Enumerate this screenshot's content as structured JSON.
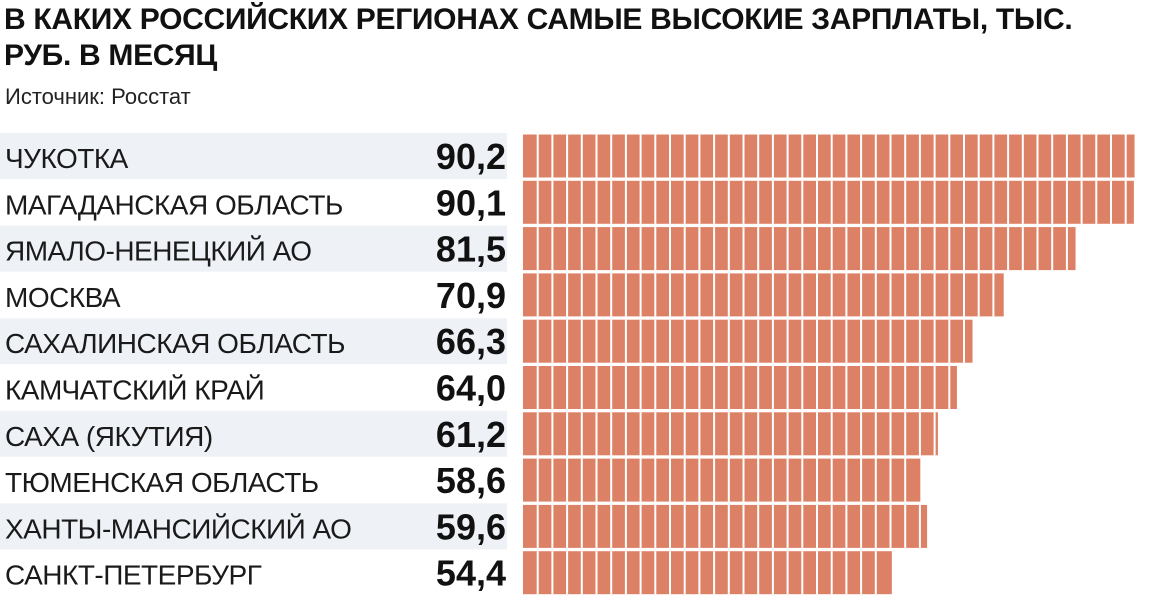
{
  "header": {
    "title": "В КАКИХ РОССИЙСКИХ РЕГИОНАХ САМЫЕ ВЫСОКИЕ ЗАРПЛАТЫ, ТЫС. РУБ. В МЕСЯЦ",
    "source": "Источник: Росстат"
  },
  "colors": {
    "bar": "#dd8166",
    "stripe": "#eef1f6",
    "text": "#111111"
  },
  "chart_data": {
    "type": "bar",
    "orientation": "horizontal",
    "title": "В КАКИХ РОССИЙСКИХ РЕГИОНАХ САМЫЕ ВЫСОКИЕ ЗАРПЛАТЫ, ТЫС. РУБ. В МЕСЯЦ",
    "xlabel": "",
    "ylabel": "",
    "grid": false,
    "legend": "none",
    "categories": [
      "ЧУКОТКА",
      "МАГАДАНСКАЯ ОБЛАСТЬ",
      "ЯМАЛО-НЕНЕЦКИЙ АО",
      "МОСКВА",
      "САХАЛИНСКАЯ ОБЛАСТЬ",
      "КАМЧАТСКИЙ КРАЙ",
      "САХА (ЯКУТИЯ)",
      "ТЮМЕНСКАЯ ОБЛАСТЬ",
      "ХАНТЫ-МАНСИЙСКИЙ АО",
      "САНКТ-ПЕТЕРБУРГ"
    ],
    "values": [
      90.2,
      90.1,
      81.5,
      70.9,
      66.3,
      64.0,
      61.2,
      58.6,
      59.6,
      54.4
    ],
    "value_labels": [
      "90,2",
      "90,1",
      "81,5",
      "70,9",
      "66,3",
      "64,0",
      "61,2",
      "58,6",
      "59,6",
      "54,4"
    ]
  }
}
